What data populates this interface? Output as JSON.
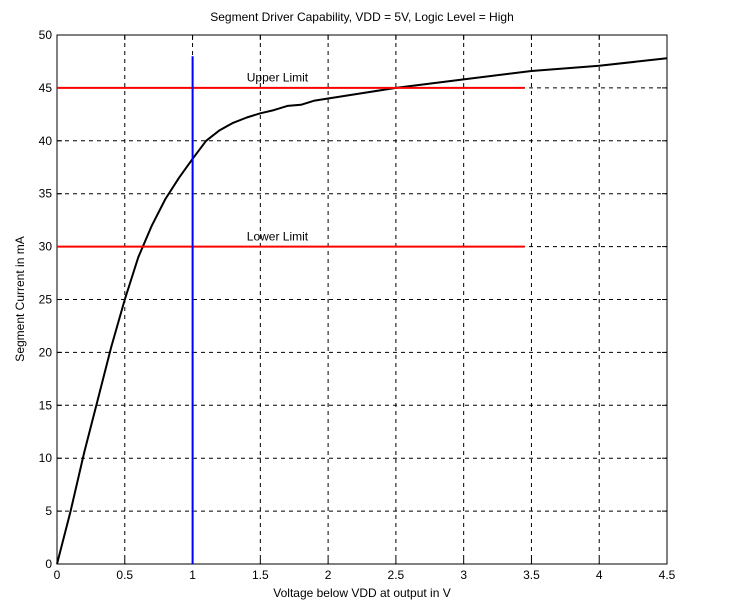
{
  "chart_data": {
    "type": "line",
    "title": "Segment Driver Capability, VDD = 5V, Logic Level = High",
    "xlabel": "Voltage below VDD at output in V",
    "ylabel": "Segment Current in mA",
    "xlim": [
      0,
      4.5
    ],
    "ylim": [
      0,
      50
    ],
    "x_ticks": [
      "0",
      "0.5",
      "1",
      "1.5",
      "2",
      "2.5",
      "3",
      "3.5",
      "4",
      "4.5"
    ],
    "y_ticks": [
      "0",
      "5",
      "10",
      "15",
      "20",
      "25",
      "30",
      "35",
      "40",
      "45",
      "50"
    ],
    "grid": true,
    "series": [
      {
        "color": "#000000",
        "x": [
          0,
          0.1,
          0.2,
          0.3,
          0.4,
          0.5,
          0.6,
          0.7,
          0.8,
          0.9,
          1.0,
          1.1,
          1.2,
          1.3,
          1.4,
          1.5,
          1.6,
          1.7,
          1.8,
          1.9,
          2.0,
          2.2,
          2.5,
          3.0,
          3.5,
          4.0,
          4.5
        ],
        "y": [
          0,
          5,
          10.5,
          15.5,
          20.5,
          25,
          29,
          32,
          34.5,
          36.5,
          38.3,
          40,
          41,
          41.7,
          42.2,
          42.6,
          42.9,
          43.3,
          43.4,
          43.8,
          44.0,
          44.4,
          45.0,
          45.8,
          46.6,
          47.1,
          47.8
        ]
      },
      {
        "color": "#ff0000",
        "x": [
          0,
          3.45
        ],
        "y": [
          45,
          45
        ]
      },
      {
        "color": "#ff0000",
        "x": [
          0,
          3.45
        ],
        "y": [
          30,
          30
        ]
      },
      {
        "color": "#0000ff",
        "x": [
          1,
          1
        ],
        "y": [
          0,
          48
        ]
      }
    ],
    "annotations": [
      {
        "text": "Upper Limit",
        "x": 1.4,
        "y": 45.6
      },
      {
        "text": "Lower Limit",
        "x": 1.4,
        "y": 30.6
      }
    ]
  }
}
